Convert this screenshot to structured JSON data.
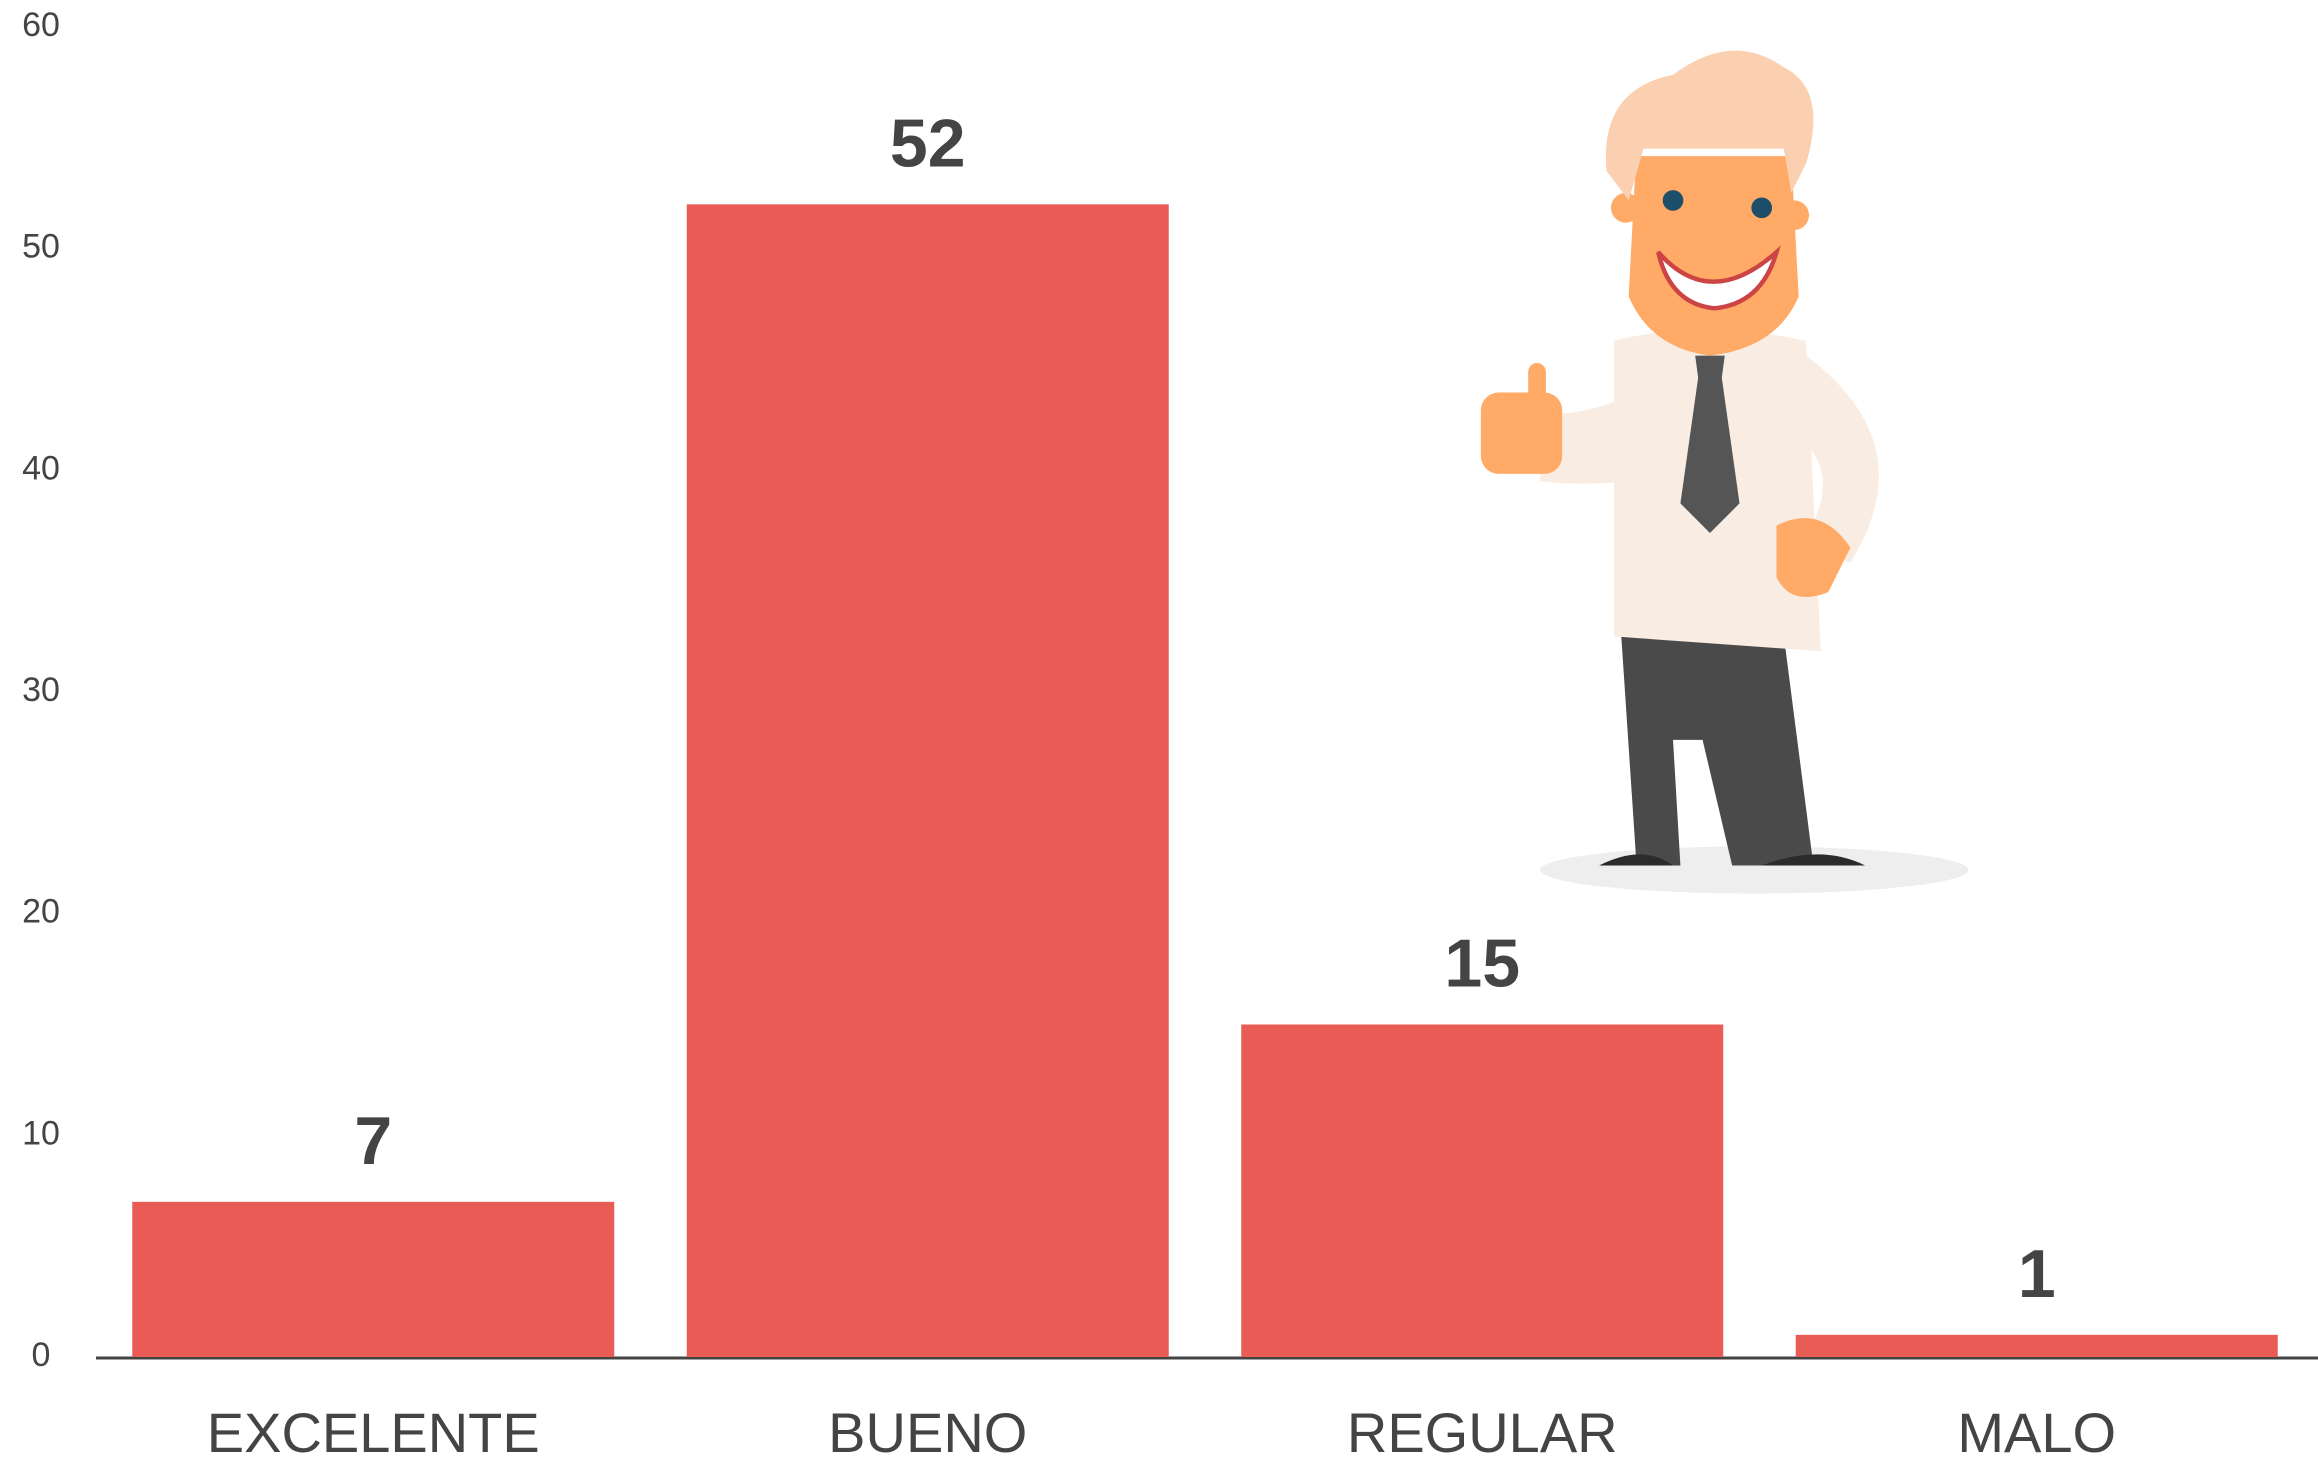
{
  "chart_data": {
    "type": "bar",
    "categories": [
      "EXCELENTE",
      "BUENO",
      "REGULAR",
      "MALO"
    ],
    "values": [
      7,
      52,
      15,
      1
    ],
    "color": "#e95c55",
    "ylim": [
      0,
      60
    ],
    "yticks": [
      0,
      10,
      20,
      30,
      40,
      50,
      60
    ],
    "grid": false
  }
}
